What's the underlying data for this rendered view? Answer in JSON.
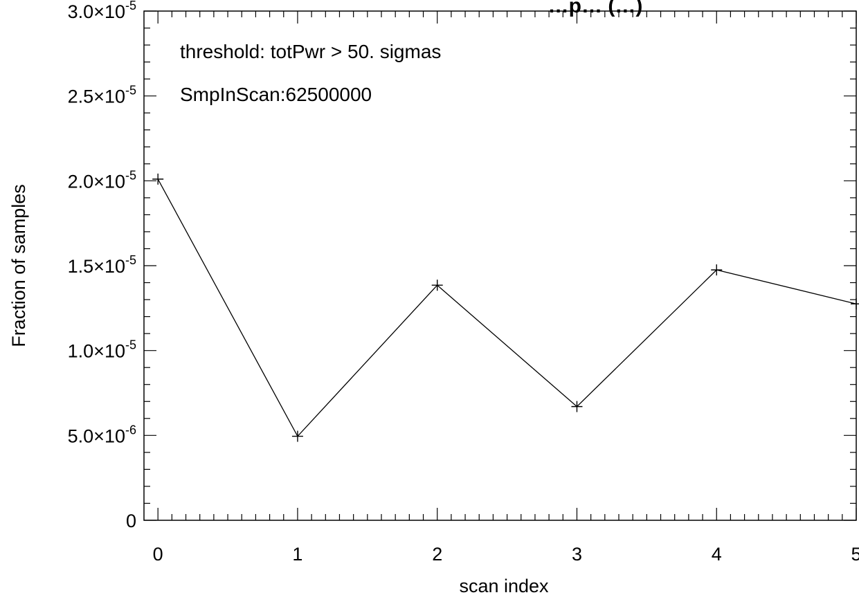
{
  "chart_data": {
    "type": "line",
    "title": "…p… (…)",
    "xlabel": "scan index",
    "ylabel": "Fraction of samples",
    "x": [
      0,
      1,
      2,
      3,
      4,
      5
    ],
    "series": [
      {
        "values": [
          2.01e-05,
          4.95e-06,
          1.385e-05,
          6.7e-06,
          1.475e-05,
          1.275e-05
        ]
      }
    ],
    "xlim": [
      -0.1,
      5.0
    ],
    "ylim": [
      0,
      3e-05
    ],
    "x_ticks": [
      {
        "value": 0,
        "label": "0"
      },
      {
        "value": 1,
        "label": "1"
      },
      {
        "value": 2,
        "label": "2"
      },
      {
        "value": 3,
        "label": "3"
      },
      {
        "value": 4,
        "label": "4"
      },
      {
        "value": 5,
        "label": "5"
      }
    ],
    "y_ticks": [
      {
        "value": 0,
        "mantissa": "0",
        "exponent": ""
      },
      {
        "value": 5e-06,
        "mantissa": "5.0×10",
        "exponent": "-6"
      },
      {
        "value": 1e-05,
        "mantissa": "1.0×10",
        "exponent": "-5"
      },
      {
        "value": 1.5e-05,
        "mantissa": "1.5×10",
        "exponent": "-5"
      },
      {
        "value": 2e-05,
        "mantissa": "2.0×10",
        "exponent": "-5"
      },
      {
        "value": 2.5e-05,
        "mantissa": "2.5×10",
        "exponent": "-5"
      },
      {
        "value": 3e-05,
        "mantissa": "3.0×10",
        "exponent": "-5"
      }
    ],
    "annotations": [
      "threshold: totPwr >  50. sigmas",
      "SmpInScan:62500000"
    ],
    "marker": "plus",
    "grid": false
  }
}
